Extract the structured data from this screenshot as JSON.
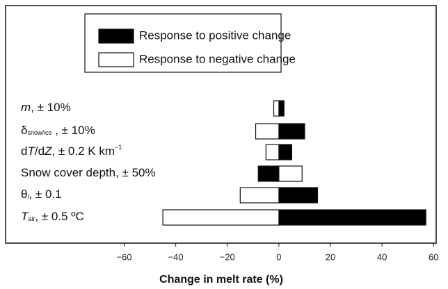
{
  "chart_data": {
    "type": "tornado",
    "categories": [
      [
        {
          "text": "m",
          "italic": true
        },
        {
          "text": ", ± 10%"
        }
      ],
      [
        {
          "text": "δ"
        },
        {
          "text": "snow/ice",
          "sub": true
        },
        {
          "text": " , ± 10%"
        }
      ],
      [
        {
          "text": "d"
        },
        {
          "text": "T",
          "italic": true
        },
        {
          "text": "/d"
        },
        {
          "text": "Z",
          "italic": true
        },
        {
          "text": ", ± 0.2 K km"
        },
        {
          "text": "−1",
          "sup": true
        }
      ],
      [
        {
          "text": "Snow cover depth, ± 50%"
        }
      ],
      [
        {
          "text": "θ"
        },
        {
          "text": "i",
          "sub": true,
          "italic": true
        },
        {
          "text": ", ± 0.1"
        }
      ],
      [
        {
          "text": "T",
          "italic": true
        },
        {
          "text": "air",
          "sub": true
        },
        {
          "text": ", ± 0.5 ºC"
        }
      ]
    ],
    "series": [
      {
        "name": "Response to positive change",
        "color": "#000000",
        "values": [
          2,
          10,
          5,
          -8,
          15,
          57
        ]
      },
      {
        "name": "Response to negative change",
        "color": "#ffffff",
        "values": [
          -2,
          -9,
          -5,
          9,
          -15,
          -45
        ]
      }
    ],
    "x_label": "Change in melt rate (%)",
    "xlim": [
      -106,
      61
    ],
    "xticks": [
      {
        "value": -60,
        "label": "−60"
      },
      {
        "value": -40,
        "label": "−40"
      },
      {
        "value": -20,
        "label": "−20"
      },
      0,
      20,
      40,
      60
    ]
  }
}
